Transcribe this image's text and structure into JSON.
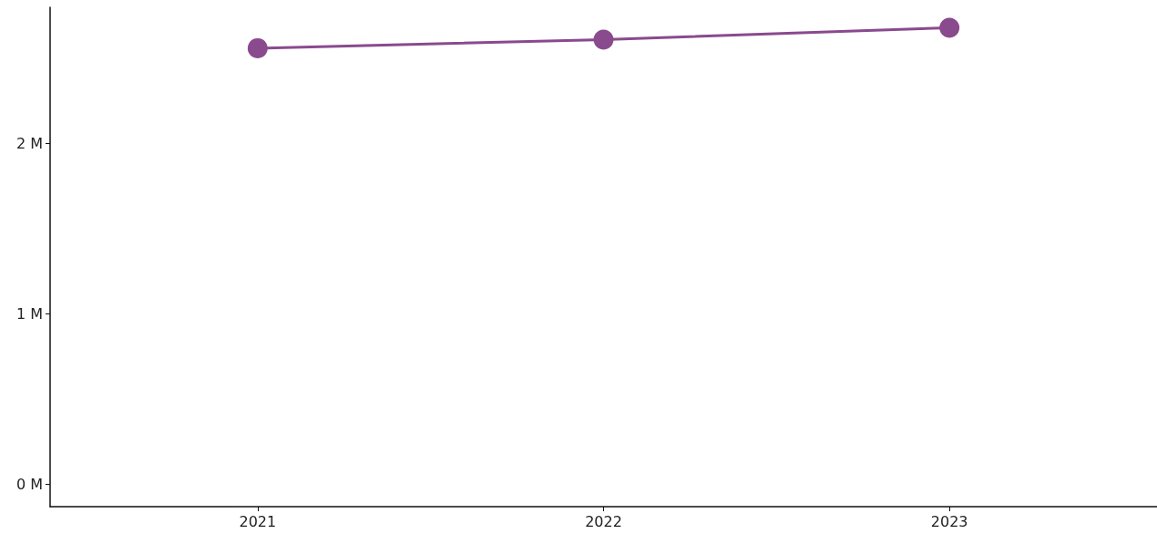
{
  "chart_data": {
    "type": "line",
    "x": [
      2021,
      2022,
      2023
    ],
    "series": [
      {
        "color": "#8a4a8e",
        "values": [
          2.56,
          2.61,
          2.68
        ]
      }
    ],
    "xlim": [
      2020.4,
      2023.6
    ],
    "xticks": [
      2021,
      2022,
      2023
    ],
    "ylim": [
      -0.13,
      2.8
    ],
    "yticks": [
      {
        "value": 0,
        "label": "0 M"
      },
      {
        "value": 1,
        "label": "1 M"
      },
      {
        "value": 2,
        "label": "2 M"
      }
    ],
    "grid": false,
    "marker": "circle",
    "line_style": "solid"
  }
}
